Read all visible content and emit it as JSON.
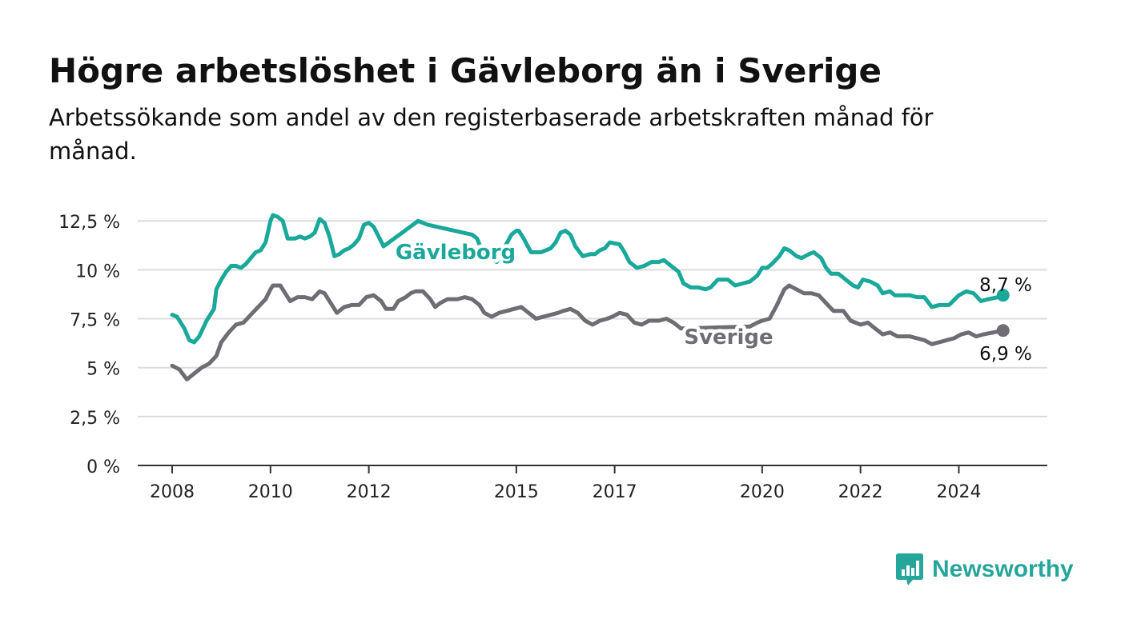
{
  "title": "Högre arbetslöshet i Gävleborg än i Sverige",
  "subtitle": "Arbetssökande som andel av den registerbaserade arbetskraften månad för månad.",
  "brand": {
    "name": "Newsworthy",
    "color": "#26a69a"
  },
  "chart_data": {
    "type": "line",
    "x_unit": "year",
    "xlim": [
      2007.3,
      2025.8
    ],
    "ylim": [
      0,
      13
    ],
    "y_ticks": [
      {
        "value": 0,
        "label": "0 %"
      },
      {
        "value": 2.5,
        "label": "2,5 %"
      },
      {
        "value": 5,
        "label": "5 %"
      },
      {
        "value": 7.5,
        "label": "7,5 %"
      },
      {
        "value": 10,
        "label": "10 %"
      },
      {
        "value": 12.5,
        "label": "12,5 %"
      }
    ],
    "x_ticks": [
      {
        "value": 2008,
        "label": "2008"
      },
      {
        "value": 2010,
        "label": "2010"
      },
      {
        "value": 2012,
        "label": "2012"
      },
      {
        "value": 2015,
        "label": "2015"
      },
      {
        "value": 2017,
        "label": "2017"
      },
      {
        "value": 2020,
        "label": "2020"
      },
      {
        "value": 2022,
        "label": "2022"
      },
      {
        "value": 2024,
        "label": "2024"
      }
    ],
    "grid": true,
    "series": [
      {
        "name": "Gävleborg",
        "color": "#1aa89a",
        "end_label": "8,7 %",
        "points": [
          [
            2008.0,
            7.7
          ],
          [
            2008.1,
            7.6
          ],
          [
            2008.25,
            7.0
          ],
          [
            2008.35,
            6.4
          ],
          [
            2008.45,
            6.3
          ],
          [
            2008.55,
            6.6
          ],
          [
            2008.7,
            7.4
          ],
          [
            2008.85,
            8.0
          ],
          [
            2008.9,
            9.0
          ],
          [
            2009.0,
            9.5
          ],
          [
            2009.1,
            9.9
          ],
          [
            2009.2,
            10.2
          ],
          [
            2009.3,
            10.2
          ],
          [
            2009.4,
            10.1
          ],
          [
            2009.5,
            10.3
          ],
          [
            2009.6,
            10.6
          ],
          [
            2009.7,
            10.9
          ],
          [
            2009.8,
            11.0
          ],
          [
            2009.9,
            11.4
          ],
          [
            2010.0,
            12.5
          ],
          [
            2010.05,
            12.8
          ],
          [
            2010.15,
            12.7
          ],
          [
            2010.25,
            12.5
          ],
          [
            2010.35,
            11.6
          ],
          [
            2010.5,
            11.6
          ],
          [
            2010.6,
            11.7
          ],
          [
            2010.7,
            11.6
          ],
          [
            2010.8,
            11.7
          ],
          [
            2010.9,
            11.9
          ],
          [
            2011.0,
            12.6
          ],
          [
            2011.1,
            12.4
          ],
          [
            2011.2,
            11.7
          ],
          [
            2011.3,
            10.7
          ],
          [
            2011.4,
            10.8
          ],
          [
            2011.5,
            11.0
          ],
          [
            2011.6,
            11.1
          ],
          [
            2011.7,
            11.3
          ],
          [
            2011.8,
            11.6
          ],
          [
            2011.9,
            12.3
          ],
          [
            2012.0,
            12.4
          ],
          [
            2012.1,
            12.2
          ],
          [
            2012.2,
            11.7
          ],
          [
            2012.3,
            11.2
          ],
          [
            2012.95,
            12.4
          ],
          [
            2013.0,
            12.5
          ],
          [
            2013.2,
            12.3
          ],
          [
            2014.1,
            11.8
          ],
          [
            2014.2,
            11.6
          ],
          [
            2014.3,
            11.0
          ],
          [
            2014.45,
            10.6
          ],
          [
            2014.6,
            10.4
          ],
          [
            2014.75,
            11.1
          ],
          [
            2014.9,
            11.8
          ],
          [
            2015.0,
            12.0
          ],
          [
            2015.05,
            12.0
          ],
          [
            2015.15,
            11.6
          ],
          [
            2015.3,
            10.9
          ],
          [
            2015.5,
            10.9
          ],
          [
            2015.7,
            11.1
          ],
          [
            2015.8,
            11.4
          ],
          [
            2015.9,
            11.9
          ],
          [
            2016.0,
            12.0
          ],
          [
            2016.1,
            11.8
          ],
          [
            2016.2,
            11.2
          ],
          [
            2016.35,
            10.7
          ],
          [
            2016.5,
            10.8
          ],
          [
            2016.6,
            10.8
          ],
          [
            2016.7,
            11.0
          ],
          [
            2016.8,
            11.1
          ],
          [
            2016.9,
            11.4
          ],
          [
            2017.1,
            11.3
          ],
          [
            2017.2,
            10.9
          ],
          [
            2017.3,
            10.4
          ],
          [
            2017.45,
            10.1
          ],
          [
            2017.6,
            10.2
          ],
          [
            2017.75,
            10.4
          ],
          [
            2017.9,
            10.4
          ],
          [
            2018.0,
            10.5
          ],
          [
            2018.15,
            10.2
          ],
          [
            2018.3,
            9.9
          ],
          [
            2018.4,
            9.3
          ],
          [
            2018.55,
            9.1
          ],
          [
            2018.7,
            9.1
          ],
          [
            2018.85,
            9.0
          ],
          [
            2018.95,
            9.1
          ],
          [
            2019.1,
            9.5
          ],
          [
            2019.3,
            9.5
          ],
          [
            2019.45,
            9.2
          ],
          [
            2019.6,
            9.3
          ],
          [
            2019.75,
            9.4
          ],
          [
            2019.9,
            9.7
          ],
          [
            2020.0,
            10.1
          ],
          [
            2020.1,
            10.1
          ],
          [
            2020.2,
            10.3
          ],
          [
            2020.35,
            10.7
          ],
          [
            2020.45,
            11.1
          ],
          [
            2020.55,
            11.0
          ],
          [
            2020.7,
            10.7
          ],
          [
            2020.8,
            10.6
          ],
          [
            2020.95,
            10.8
          ],
          [
            2021.05,
            10.9
          ],
          [
            2021.2,
            10.6
          ],
          [
            2021.3,
            10.1
          ],
          [
            2021.4,
            9.8
          ],
          [
            2021.55,
            9.8
          ],
          [
            2021.7,
            9.5
          ],
          [
            2021.85,
            9.2
          ],
          [
            2021.95,
            9.1
          ],
          [
            2022.05,
            9.5
          ],
          [
            2022.2,
            9.4
          ],
          [
            2022.35,
            9.2
          ],
          [
            2022.45,
            8.8
          ],
          [
            2022.6,
            8.9
          ],
          [
            2022.7,
            8.7
          ],
          [
            2022.85,
            8.7
          ],
          [
            2023.0,
            8.7
          ],
          [
            2023.15,
            8.6
          ],
          [
            2023.3,
            8.6
          ],
          [
            2023.45,
            8.1
          ],
          [
            2023.6,
            8.2
          ],
          [
            2023.8,
            8.2
          ],
          [
            2024.0,
            8.7
          ],
          [
            2024.15,
            8.9
          ],
          [
            2024.3,
            8.8
          ],
          [
            2024.45,
            8.4
          ],
          [
            2024.6,
            8.5
          ],
          [
            2024.8,
            8.6
          ],
          [
            2024.9,
            8.7
          ]
        ]
      },
      {
        "name": "Sverige",
        "color": "#6f6c74",
        "end_label": "6,9 %",
        "points": [
          [
            2008.0,
            5.1
          ],
          [
            2008.15,
            4.9
          ],
          [
            2008.3,
            4.4
          ],
          [
            2008.45,
            4.7
          ],
          [
            2008.6,
            5.0
          ],
          [
            2008.75,
            5.2
          ],
          [
            2008.9,
            5.6
          ],
          [
            2009.0,
            6.3
          ],
          [
            2009.15,
            6.8
          ],
          [
            2009.3,
            7.2
          ],
          [
            2009.45,
            7.3
          ],
          [
            2009.6,
            7.7
          ],
          [
            2009.75,
            8.1
          ],
          [
            2009.9,
            8.5
          ],
          [
            2010.0,
            9.0
          ],
          [
            2010.05,
            9.2
          ],
          [
            2010.2,
            9.2
          ],
          [
            2010.3,
            8.8
          ],
          [
            2010.4,
            8.4
          ],
          [
            2010.55,
            8.6
          ],
          [
            2010.7,
            8.6
          ],
          [
            2010.85,
            8.5
          ],
          [
            2011.0,
            8.9
          ],
          [
            2011.1,
            8.8
          ],
          [
            2011.25,
            8.2
          ],
          [
            2011.35,
            7.8
          ],
          [
            2011.5,
            8.1
          ],
          [
            2011.65,
            8.2
          ],
          [
            2011.8,
            8.2
          ],
          [
            2011.95,
            8.6
          ],
          [
            2012.1,
            8.7
          ],
          [
            2012.25,
            8.4
          ],
          [
            2012.35,
            8.0
          ],
          [
            2012.5,
            8.0
          ],
          [
            2012.6,
            8.4
          ],
          [
            2012.75,
            8.6
          ],
          [
            2012.85,
            8.8
          ],
          [
            2012.95,
            8.9
          ],
          [
            2013.1,
            8.9
          ],
          [
            2013.25,
            8.5
          ],
          [
            2013.35,
            8.1
          ],
          [
            2013.45,
            8.3
          ],
          [
            2013.6,
            8.5
          ],
          [
            2013.8,
            8.5
          ],
          [
            2013.95,
            8.6
          ],
          [
            2014.1,
            8.5
          ],
          [
            2014.25,
            8.2
          ],
          [
            2014.35,
            7.8
          ],
          [
            2014.5,
            7.6
          ],
          [
            2014.65,
            7.8
          ],
          [
            2014.8,
            7.9
          ],
          [
            2014.95,
            8.0
          ],
          [
            2015.1,
            8.1
          ],
          [
            2015.25,
            7.8
          ],
          [
            2015.4,
            7.5
          ],
          [
            2015.55,
            7.6
          ],
          [
            2015.7,
            7.7
          ],
          [
            2015.85,
            7.8
          ],
          [
            2015.95,
            7.9
          ],
          [
            2016.1,
            8.0
          ],
          [
            2016.25,
            7.8
          ],
          [
            2016.4,
            7.4
          ],
          [
            2016.55,
            7.2
          ],
          [
            2016.7,
            7.4
          ],
          [
            2016.85,
            7.5
          ],
          [
            2016.95,
            7.6
          ],
          [
            2017.1,
            7.8
          ],
          [
            2017.25,
            7.7
          ],
          [
            2017.4,
            7.3
          ],
          [
            2017.55,
            7.2
          ],
          [
            2017.7,
            7.4
          ],
          [
            2017.9,
            7.4
          ],
          [
            2018.05,
            7.5
          ],
          [
            2018.2,
            7.3
          ],
          [
            2018.35,
            7.0
          ],
          [
            2019.75,
            7.1
          ],
          [
            2019.9,
            7.3
          ],
          [
            2020.0,
            7.4
          ],
          [
            2020.15,
            7.5
          ],
          [
            2020.3,
            8.2
          ],
          [
            2020.45,
            9.0
          ],
          [
            2020.55,
            9.2
          ],
          [
            2020.7,
            9.0
          ],
          [
            2020.85,
            8.8
          ],
          [
            2021.0,
            8.8
          ],
          [
            2021.15,
            8.7
          ],
          [
            2021.3,
            8.3
          ],
          [
            2021.45,
            7.9
          ],
          [
            2021.65,
            7.9
          ],
          [
            2021.8,
            7.4
          ],
          [
            2022.0,
            7.2
          ],
          [
            2022.15,
            7.3
          ],
          [
            2022.3,
            7.0
          ],
          [
            2022.45,
            6.7
          ],
          [
            2022.6,
            6.8
          ],
          [
            2022.75,
            6.6
          ],
          [
            2023.0,
            6.6
          ],
          [
            2023.15,
            6.5
          ],
          [
            2023.3,
            6.4
          ],
          [
            2023.45,
            6.2
          ],
          [
            2023.6,
            6.3
          ],
          [
            2023.75,
            6.4
          ],
          [
            2023.9,
            6.5
          ],
          [
            2024.05,
            6.7
          ],
          [
            2024.2,
            6.8
          ],
          [
            2024.35,
            6.6
          ],
          [
            2024.5,
            6.7
          ],
          [
            2024.7,
            6.8
          ],
          [
            2024.9,
            6.9
          ]
        ]
      }
    ]
  }
}
